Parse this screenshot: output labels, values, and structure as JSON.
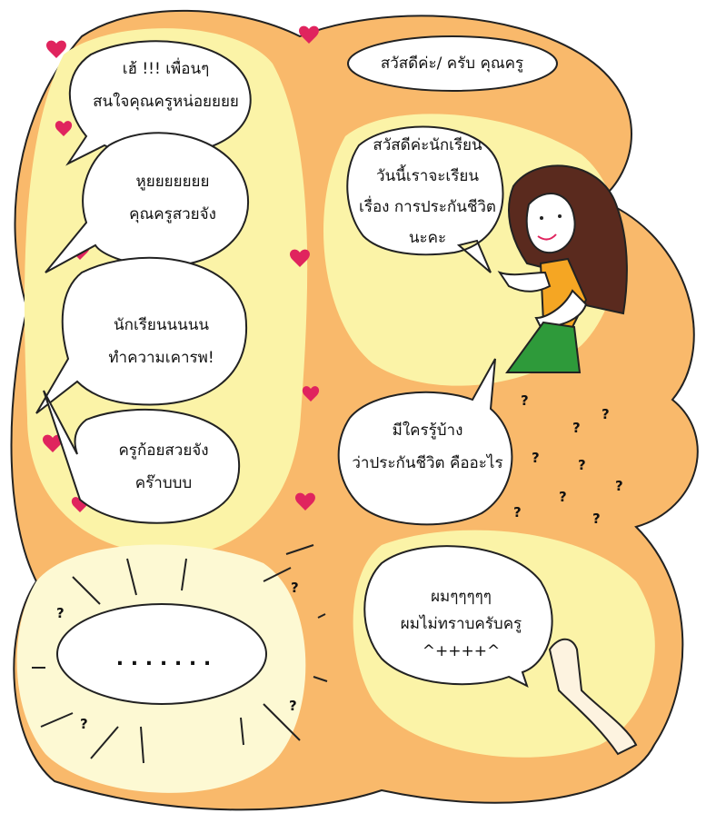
{
  "speech": {
    "left_1": [
      "เฮ้ !!! เพื่อนๆ",
      "สนใจคุณครูหน่อยยยย"
    ],
    "left_2": [
      "หูยยยยยยย",
      "คุณครูสวยจัง"
    ],
    "left_3": [
      "นักเรียนนนนน",
      "ทำความเคารพ!"
    ],
    "left_4": [
      "ครูก้อยสวยจัง",
      "คร๊าบบบ"
    ],
    "greeting": "สวัสดีค่ะ/ ครับ คุณครู",
    "teacher_1": [
      "สวัสดีค่ะนักเรียน",
      "วันนี้เราจะเรียน",
      "เรื่อง การประกันชีวิต",
      "นะคะ"
    ],
    "teacher_2": [
      "มีใครรู้บ้าง",
      "ว่าประกันชีวิต คืออะไร"
    ],
    "silence": ". . . . . . .",
    "student_reply": [
      "ผมๆๆๆๆๆ",
      "ผมไม่ทราบครับครู",
      "^++++^"
    ]
  },
  "question_mark": "?",
  "colors": {
    "orange": "#f9b96b",
    "yellow": "#fbf3a7",
    "pale": "#fdf9d3",
    "heart": "#e0245e",
    "dress_top": "#f5a623",
    "skirt": "#2e9a3a",
    "hair": "#5a2a1e"
  }
}
